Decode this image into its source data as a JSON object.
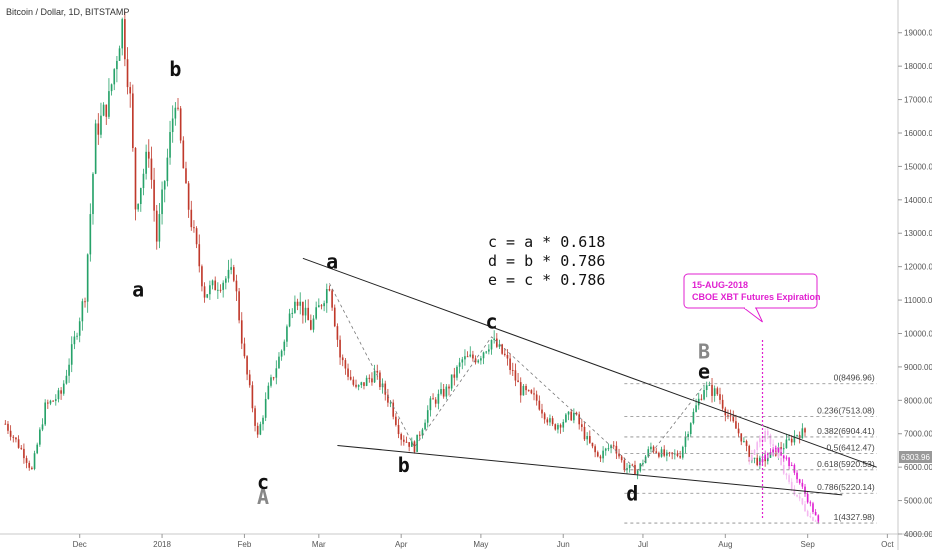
{
  "title": "Bitcoin / Dollar, 1D, BITSTAMP",
  "chart_data": {
    "type": "candlestick",
    "y_range": [
      4000,
      19800
    ],
    "x_range": [
      "2017-11-01",
      "2018-10-05"
    ],
    "y_ticks": [
      "4000.00",
      "5000.00",
      "6000.00",
      "7000.00",
      "8000.00",
      "9000.00",
      "10000.00",
      "11000.00",
      "12000.00",
      "13000.00",
      "14000.00",
      "15000.00",
      "16000.00",
      "17000.00",
      "18000.00",
      "19000.00"
    ],
    "x_ticks": [
      {
        "date": "2017-12-01",
        "label": "Dec"
      },
      {
        "date": "2018-01-01",
        "label": "2018"
      },
      {
        "date": "2018-02-01",
        "label": "Feb"
      },
      {
        "date": "2018-03-01",
        "label": "Mar"
      },
      {
        "date": "2018-04-01",
        "label": "Apr"
      },
      {
        "date": "2018-05-01",
        "label": "May"
      },
      {
        "date": "2018-06-01",
        "label": "Jun"
      },
      {
        "date": "2018-07-01",
        "label": "Jul"
      },
      {
        "date": "2018-08-01",
        "label": "Aug"
      },
      {
        "date": "2018-09-01",
        "label": "Sep"
      },
      {
        "date": "2018-10-01",
        "label": "Oct"
      }
    ],
    "price_path": [
      {
        "date": "2017-11-03",
        "price": 7300
      },
      {
        "date": "2017-11-10",
        "price": 6400
      },
      {
        "date": "2017-11-13",
        "price": 5900
      },
      {
        "date": "2017-11-18",
        "price": 7800
      },
      {
        "date": "2017-11-24",
        "price": 8200
      },
      {
        "date": "2017-11-29",
        "price": 9800
      },
      {
        "date": "2017-12-03",
        "price": 11200
      },
      {
        "date": "2017-12-07",
        "price": 16000
      },
      {
        "date": "2017-12-12",
        "price": 17000
      },
      {
        "date": "2017-12-17",
        "price": 19300
      },
      {
        "date": "2017-12-20",
        "price": 17000
      },
      {
        "date": "2017-12-22",
        "price": 13800
      },
      {
        "date": "2017-12-27",
        "price": 15500
      },
      {
        "date": "2017-12-30",
        "price": 12800
      },
      {
        "date": "2018-01-02",
        "price": 14600
      },
      {
        "date": "2018-01-06",
        "price": 17100
      },
      {
        "date": "2018-01-10",
        "price": 14200
      },
      {
        "date": "2018-01-17",
        "price": 11200
      },
      {
        "date": "2018-01-22",
        "price": 11500
      },
      {
        "date": "2018-01-28",
        "price": 11800
      },
      {
        "date": "2018-02-01",
        "price": 9200
      },
      {
        "date": "2018-02-06",
        "price": 6900
      },
      {
        "date": "2018-02-10",
        "price": 8300
      },
      {
        "date": "2018-02-15",
        "price": 9500
      },
      {
        "date": "2018-02-20",
        "price": 11200
      },
      {
        "date": "2018-02-26",
        "price": 10200
      },
      {
        "date": "2018-03-05",
        "price": 11500
      },
      {
        "date": "2018-03-09",
        "price": 9300
      },
      {
        "date": "2018-03-15",
        "price": 8300
      },
      {
        "date": "2018-03-22",
        "price": 8800
      },
      {
        "date": "2018-03-28",
        "price": 7900
      },
      {
        "date": "2018-04-01",
        "price": 6900
      },
      {
        "date": "2018-04-06",
        "price": 6600
      },
      {
        "date": "2018-04-12",
        "price": 7900
      },
      {
        "date": "2018-04-18",
        "price": 8300
      },
      {
        "date": "2018-04-24",
        "price": 9200
      },
      {
        "date": "2018-04-30",
        "price": 9300
      },
      {
        "date": "2018-05-05",
        "price": 9800
      },
      {
        "date": "2018-05-10",
        "price": 9300
      },
      {
        "date": "2018-05-16",
        "price": 8300
      },
      {
        "date": "2018-05-22",
        "price": 8000
      },
      {
        "date": "2018-05-28",
        "price": 7200
      },
      {
        "date": "2018-06-05",
        "price": 7600
      },
      {
        "date": "2018-06-10",
        "price": 6800
      },
      {
        "date": "2018-06-14",
        "price": 6300
      },
      {
        "date": "2018-06-20",
        "price": 6700
      },
      {
        "date": "2018-06-24",
        "price": 6000
      },
      {
        "date": "2018-06-29",
        "price": 5900
      },
      {
        "date": "2018-07-04",
        "price": 6600
      },
      {
        "date": "2018-07-10",
        "price": 6300
      },
      {
        "date": "2018-07-15",
        "price": 6400
      },
      {
        "date": "2018-07-19",
        "price": 7400
      },
      {
        "date": "2018-07-24",
        "price": 8400
      },
      {
        "date": "2018-07-29",
        "price": 8200
      },
      {
        "date": "2018-08-03",
        "price": 7400
      },
      {
        "date": "2018-08-07",
        "price": 6900
      },
      {
        "date": "2018-08-10",
        "price": 6300
      },
      {
        "date": "2018-08-14",
        "price": 6150
      },
      {
        "date": "2018-08-19",
        "price": 6400
      },
      {
        "date": "2018-08-24",
        "price": 6700
      },
      {
        "date": "2018-08-28",
        "price": 7000
      },
      {
        "date": "2018-08-31",
        "price": 7050
      }
    ],
    "projection_path": [
      {
        "date": "2018-08-14",
        "price": 6150
      },
      {
        "date": "2018-08-18",
        "price": 6450
      },
      {
        "date": "2018-08-21",
        "price": 6550
      },
      {
        "date": "2018-08-24",
        "price": 6250
      },
      {
        "date": "2018-08-28",
        "price": 5700
      },
      {
        "date": "2018-08-31",
        "price": 5200
      },
      {
        "date": "2018-09-03",
        "price": 4700
      },
      {
        "date": "2018-09-05",
        "price": 4330
      }
    ],
    "projection_ghost": [
      {
        "date": "2018-08-10",
        "price": 6300
      },
      {
        "date": "2018-08-13",
        "price": 6700
      },
      {
        "date": "2018-08-16",
        "price": 6950
      },
      {
        "date": "2018-08-19",
        "price": 6700
      },
      {
        "date": "2018-08-22",
        "price": 6000
      },
      {
        "date": "2018-08-25",
        "price": 5500
      },
      {
        "date": "2018-08-29",
        "price": 5000
      },
      {
        "date": "2018-09-02",
        "price": 4500
      },
      {
        "date": "2018-09-05",
        "price": 4400
      }
    ],
    "trendlines": [
      {
        "name": "upper",
        "from": {
          "date": "2018-02-23",
          "price": 12250
        },
        "to": {
          "date": "2018-09-27",
          "price": 6000
        }
      },
      {
        "name": "lower",
        "from": {
          "date": "2018-03-08",
          "price": 6650
        },
        "to": {
          "date": "2018-09-14",
          "price": 5170
        }
      }
    ],
    "wave_labels": [
      {
        "text": "a",
        "date": "2017-12-23",
        "price": 11100,
        "style": "black"
      },
      {
        "text": "b",
        "date": "2018-01-06",
        "price": 17700,
        "style": "black"
      },
      {
        "text": "c",
        "date": "2018-02-08",
        "price": 5350,
        "style": "black"
      },
      {
        "text": "A",
        "date": "2018-02-08",
        "price": 4900,
        "style": "grey"
      },
      {
        "text": "a",
        "date": "2018-03-06",
        "price": 11950,
        "style": "black"
      },
      {
        "text": "b",
        "date": "2018-04-02",
        "price": 5850,
        "style": "black"
      },
      {
        "text": "c",
        "date": "2018-05-05",
        "price": 10150,
        "style": "black"
      },
      {
        "text": "d",
        "date": "2018-06-27",
        "price": 5000,
        "style": "black"
      },
      {
        "text": "B",
        "date": "2018-07-24",
        "price": 9250,
        "style": "grey"
      },
      {
        "text": "e",
        "date": "2018-07-24",
        "price": 8650,
        "style": "black"
      }
    ],
    "formulas": [
      "c = a * 0.618",
      "d = b * 0.786",
      "e = c * 0.786"
    ],
    "fib_levels": [
      {
        "ratio": "0",
        "price": 8496.96,
        "label": "0(8496.96)"
      },
      {
        "ratio": "0.236",
        "price": 7513.08,
        "label": "0.236(7513.08)"
      },
      {
        "ratio": "0.382",
        "price": 6904.41,
        "label": "0.382(6904.41)"
      },
      {
        "ratio": "0.5",
        "price": 6412.47,
        "label": "0.5(6412.47)"
      },
      {
        "ratio": "0.618",
        "price": 5920.53,
        "label": "0.618(5920.53)"
      },
      {
        "ratio": "0.786",
        "price": 5220.14,
        "label": "0.786(5220.14)"
      },
      {
        "ratio": "1",
        "price": 4327.98,
        "label": "1(4327.98)"
      }
    ],
    "annotation": {
      "line1": "15-AUG-2018",
      "line2": "CBOE XBT Futures Expiration",
      "date": "2018-08-15"
    },
    "last_price": {
      "value": 6303.96,
      "label": "6303.96",
      "color": "#999999"
    },
    "colors": {
      "up": "#26a269",
      "down": "#c0392b",
      "projection": "#e020d0",
      "projection_ghost": "#f4b8f0",
      "fib": "#888888",
      "line": "#222222"
    }
  }
}
